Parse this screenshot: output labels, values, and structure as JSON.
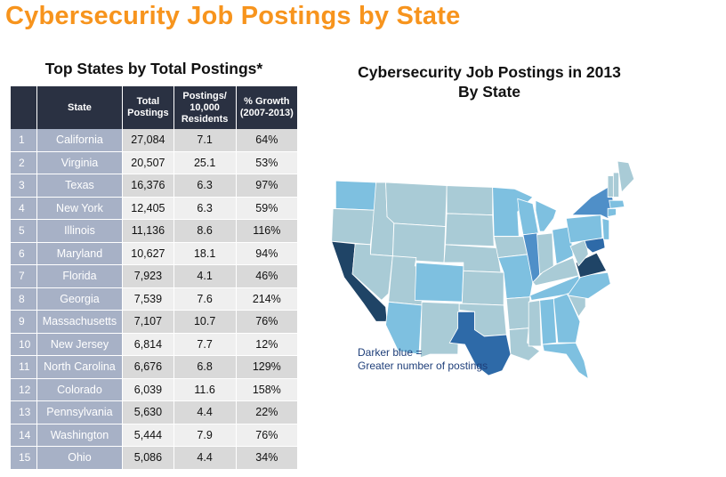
{
  "page_title": "Cybersecurity Job Postings by State",
  "chart_data": [
    {
      "type": "table",
      "title": "Top States by Total Postings*",
      "columns": [
        "",
        "State",
        "Total Postings",
        "Postings/ 10,000 Residents",
        "% Growth (2007-2013)"
      ],
      "rows": [
        {
          "rank": "1",
          "state": "California",
          "total": "27,084",
          "per10k": "7.1",
          "growth": "64%"
        },
        {
          "rank": "2",
          "state": "Virginia",
          "total": "20,507",
          "per10k": "25.1",
          "growth": "53%"
        },
        {
          "rank": "3",
          "state": "Texas",
          "total": "16,376",
          "per10k": "6.3",
          "growth": "97%"
        },
        {
          "rank": "4",
          "state": "New York",
          "total": "12,405",
          "per10k": "6.3",
          "growth": "59%"
        },
        {
          "rank": "5",
          "state": "Illinois",
          "total": "11,136",
          "per10k": "8.6",
          "growth": "116%"
        },
        {
          "rank": "6",
          "state": "Maryland",
          "total": "10,627",
          "per10k": "18.1",
          "growth": "94%"
        },
        {
          "rank": "7",
          "state": "Florida",
          "total": "7,923",
          "per10k": "4.1",
          "growth": "46%"
        },
        {
          "rank": "8",
          "state": "Georgia",
          "total": "7,539",
          "per10k": "7.6",
          "growth": "214%"
        },
        {
          "rank": "9",
          "state": "Massachusetts",
          "total": "7,107",
          "per10k": "10.7",
          "growth": "76%"
        },
        {
          "rank": "10",
          "state": "New Jersey",
          "total": "6,814",
          "per10k": "7.7",
          "growth": "12%"
        },
        {
          "rank": "11",
          "state": "North Carolina",
          "total": "6,676",
          "per10k": "6.8",
          "growth": "129%"
        },
        {
          "rank": "12",
          "state": "Colorado",
          "total": "6,039",
          "per10k": "11.6",
          "growth": "158%"
        },
        {
          "rank": "13",
          "state": "Pennsylvania",
          "total": "5,630",
          "per10k": "4.4",
          "growth": "22%"
        },
        {
          "rank": "14",
          "state": "Washington",
          "total": "5,444",
          "per10k": "7.9",
          "growth": "76%"
        },
        {
          "rank": "15",
          "state": "Ohio",
          "total": "5,086",
          "per10k": "4.4",
          "growth": "34%"
        }
      ]
    },
    {
      "type": "heatmap",
      "title_line1": "Cybersecurity Job Postings in 2013",
      "title_line2": "By State",
      "legend_line1": "Darker blue =",
      "legend_line2": "Greater number of postings",
      "colors": {
        "lightest": "#a9cbd6",
        "light": "#7ec0e0",
        "medium": "#4f8fc8",
        "dark": "#2e6aa8",
        "darkest": "#1f4466"
      },
      "shade_levels": {
        "California": "darkest",
        "Virginia": "darkest",
        "Texas": "dark",
        "New York": "medium",
        "Illinois": "medium",
        "Maryland": "dark",
        "Colorado": "light",
        "Washington": "light",
        "Florida": "light",
        "Georgia": "light",
        "Massachusetts": "light",
        "New Jersey": "light",
        "North Carolina": "light",
        "Pennsylvania": "light",
        "Ohio": "light",
        "Arizona": "light",
        "Michigan": "light",
        "Minnesota": "light",
        "Missouri": "light",
        "Wisconsin": "light",
        "Tennessee": "light",
        "Alabama": "light",
        "Connecticut": "light"
      }
    }
  ]
}
